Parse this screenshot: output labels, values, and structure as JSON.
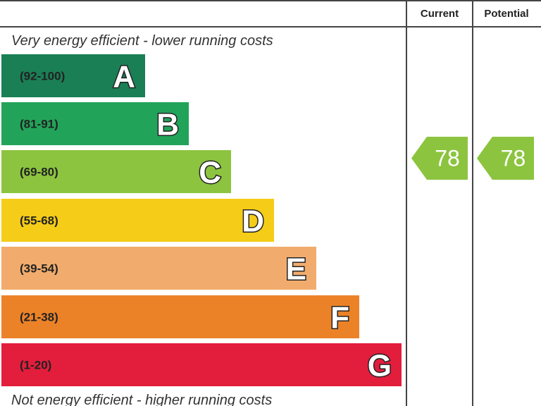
{
  "header": {
    "columns": [
      "Current",
      "Potential"
    ]
  },
  "top_note": "Very energy efficient - lower running costs",
  "bottom_note": "Not energy efficient - higher running costs",
  "bands": [
    {
      "range": "(92-100)",
      "letter": "A",
      "color": "#1a7f55"
    },
    {
      "range": "(81-91)",
      "letter": "B",
      "color": "#22a35a"
    },
    {
      "range": "(69-80)",
      "letter": "C",
      "color": "#8cc43f"
    },
    {
      "range": "(55-68)",
      "letter": "D",
      "color": "#f5cc18"
    },
    {
      "range": "(39-54)",
      "letter": "E",
      "color": "#f1ac6d"
    },
    {
      "range": "(21-38)",
      "letter": "F",
      "color": "#ec8228"
    },
    {
      "range": "(1-20)",
      "letter": "G",
      "color": "#e31d3c"
    }
  ],
  "current": {
    "value": 78,
    "color": "#8cc43f"
  },
  "potential": {
    "value": 78,
    "color": "#8cc43f"
  }
}
